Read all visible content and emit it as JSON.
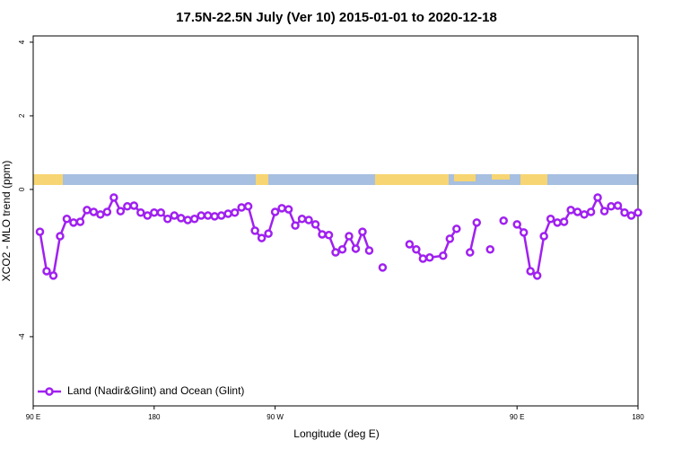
{
  "chart_data": {
    "type": "line",
    "title": "17.5N-22.5N July (Ver 10)   2015-01-01 to 2020-12-18",
    "xlabel": "Longitude (deg E)",
    "ylabel": "XCO2 - MLO trend (ppm)",
    "xlim": [
      90,
      540
    ],
    "ylim": [
      -5.88,
      4.17
    ],
    "xticks": [
      {
        "value": 90,
        "label": "90 E"
      },
      180,
      {
        "value": 270,
        "label": "90 W"
      },
      {
        "value": 450,
        "label": "90 E"
      },
      180
    ],
    "yticks": [
      -4,
      0,
      2,
      4
    ],
    "legend": "bottom-left",
    "x": [
      95,
      100,
      105,
      110,
      115,
      120,
      125,
      130,
      135,
      140,
      145,
      150,
      155,
      160,
      165,
      170,
      175,
      180,
      185,
      190,
      195,
      200,
      205,
      210,
      215,
      220,
      225,
      230,
      235,
      240,
      245,
      250,
      255,
      260,
      265,
      270,
      275,
      280,
      285,
      290,
      295,
      300,
      305,
      310,
      315,
      320,
      325,
      330,
      335,
      340,
      345,
      350,
      355,
      370,
      375,
      380,
      385,
      395,
      400,
      405,
      410,
      415,
      420,
      425,
      430,
      435,
      440,
      445,
      450,
      455,
      460,
      465,
      470,
      475,
      480,
      485,
      490,
      495,
      500,
      505,
      510,
      515,
      520,
      525,
      530,
      535,
      540
    ],
    "series": [
      {
        "name": "Land (Nadir&Glint) and Ocean (Glint)",
        "color": "#a020f0",
        "values": [
          -1.15,
          -2.22,
          -2.34,
          -1.27,
          -0.8,
          -0.9,
          -0.88,
          -0.56,
          -0.61,
          -0.68,
          -0.61,
          -0.22,
          -0.59,
          -0.46,
          -0.44,
          -0.63,
          -0.71,
          -0.63,
          -0.63,
          -0.8,
          -0.71,
          -0.78,
          -0.83,
          -0.8,
          -0.71,
          -0.71,
          -0.73,
          -0.71,
          -0.66,
          -0.63,
          -0.49,
          -0.46,
          -1.12,
          -1.32,
          -1.2,
          -0.61,
          -0.51,
          -0.54,
          -0.98,
          -0.8,
          -0.83,
          -0.95,
          -1.22,
          -1.24,
          -1.71,
          -1.63,
          -1.27,
          -1.61,
          -1.15,
          -1.66,
          null,
          -2.12,
          null,
          -1.49,
          -1.63,
          -1.88,
          -1.85,
          -1.8,
          -1.34,
          -1.07,
          null,
          -1.71,
          -0.9,
          null,
          -1.63,
          null,
          -0.85,
          null,
          -0.95,
          -1.17,
          -2.22,
          -2.34,
          -1.27,
          -0.8,
          -0.9,
          -0.88,
          -0.56,
          -0.61,
          -0.68,
          -0.61,
          -0.22,
          -0.59,
          -0.46,
          -0.44,
          -0.63,
          -0.71,
          -0.63
        ]
      }
    ]
  }
}
